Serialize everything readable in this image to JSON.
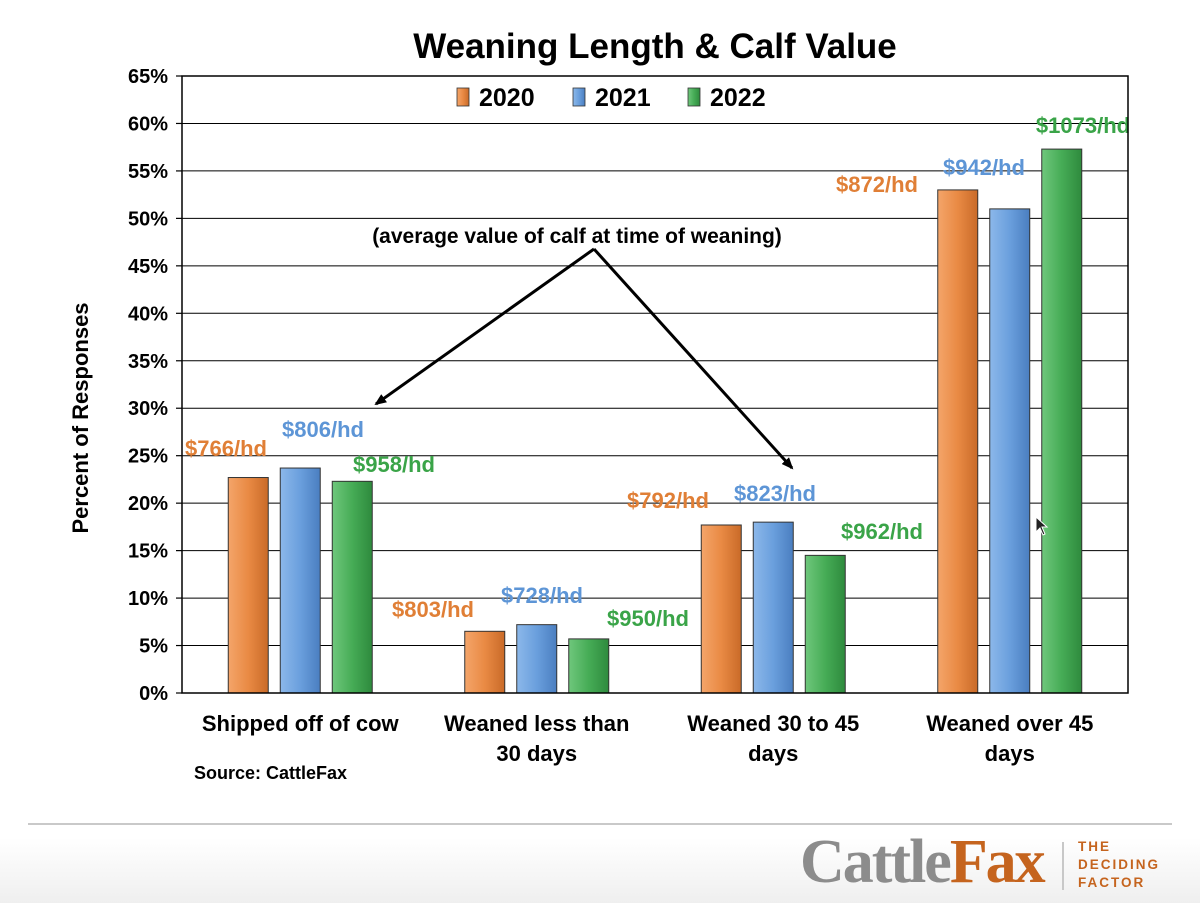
{
  "chart_data": {
    "type": "bar",
    "title": "Weaning Length & Calf Value",
    "ylabel": "Percent of Responses",
    "xlabel": "",
    "ylim": [
      0,
      65
    ],
    "y_ticks": [
      "0%",
      "5%",
      "10%",
      "15%",
      "20%",
      "25%",
      "30%",
      "35%",
      "40%",
      "45%",
      "50%",
      "55%",
      "60%",
      "65%"
    ],
    "categories": [
      [
        "Shipped off of cow"
      ],
      [
        "Weaned less than",
        "30 days"
      ],
      [
        "Weaned 30 to 45",
        "days"
      ],
      [
        "Weaned over 45",
        "days"
      ]
    ],
    "series": [
      {
        "name": "2020",
        "color": "#e88a45",
        "values": [
          22.7,
          6.5,
          17.7,
          53.0
        ],
        "value_labels": [
          "$766/hd",
          "$803/hd",
          "$792/hd",
          "$872/hd"
        ]
      },
      {
        "name": "2021",
        "color": "#6a9fdd",
        "values": [
          23.7,
          7.2,
          18.0,
          51.0
        ],
        "value_labels": [
          "$806/hd",
          "$728/hd",
          "$823/hd",
          "$942/hd"
        ]
      },
      {
        "name": "2022",
        "color": "#46ac56",
        "values": [
          22.3,
          5.7,
          14.5,
          57.3
        ],
        "value_labels": [
          "$958/hd",
          "$950/hd",
          "$962/hd",
          "$1073/hd"
        ]
      }
    ],
    "annotation": "(average value of calf at time of weaning)",
    "legend_position": "top",
    "grid": true,
    "source": "Source: CattleFax",
    "label_colors": {
      "2020": "#e07f36",
      "2021": "#5d95d6",
      "2022": "#3aa448"
    }
  },
  "brand": {
    "logo_left": "Cattle",
    "logo_right": "Fax",
    "tagline": [
      "THE",
      "DECIDING",
      "FACTOR"
    ]
  }
}
